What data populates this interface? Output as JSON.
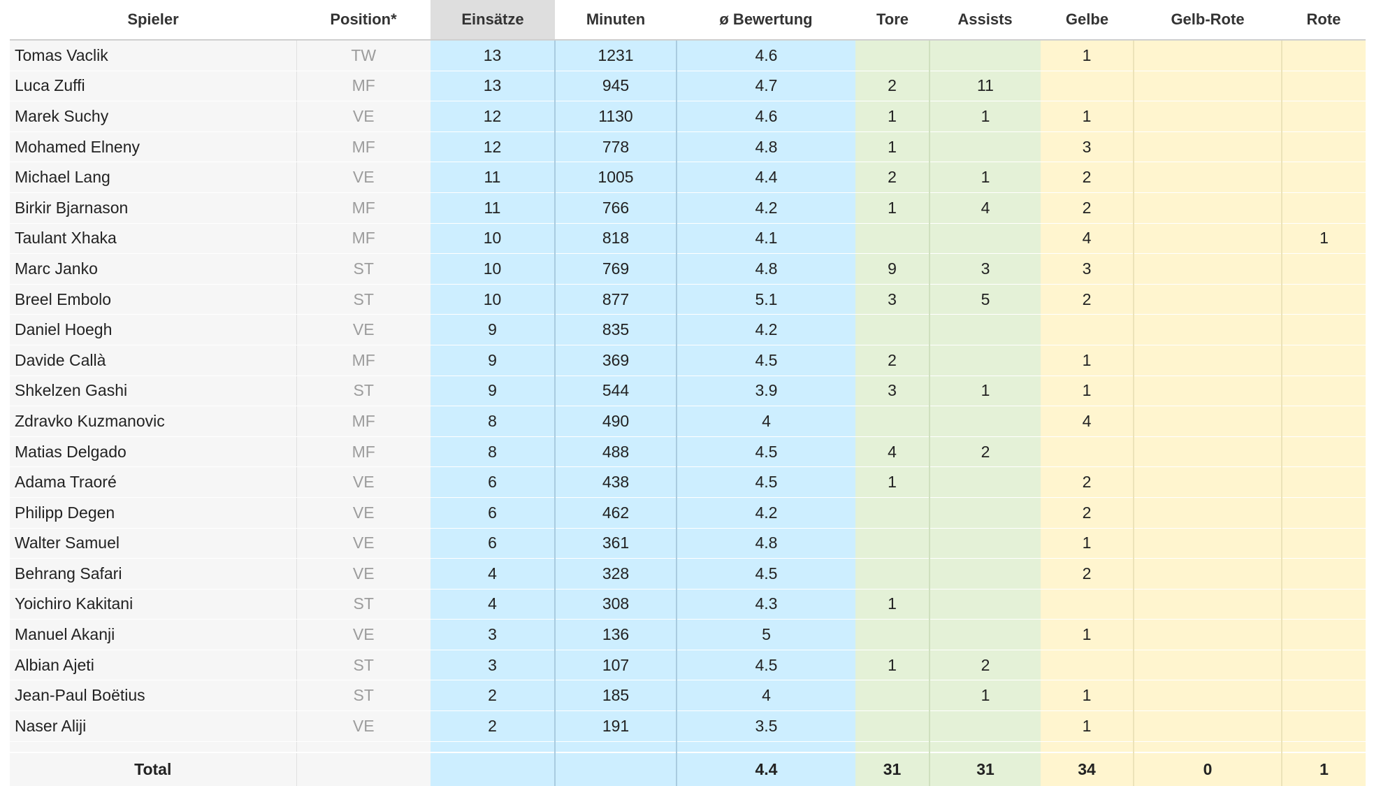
{
  "columns": [
    "Spieler",
    "Position*",
    "Einsätze",
    "Minuten",
    "ø Bewertung",
    "Tore",
    "Assists",
    "Gelbe",
    "Gelb-Rote",
    "Rote"
  ],
  "sorted_column": "Einsätze",
  "colors": {
    "blue_group": "#cdeeff",
    "green_group": "#e4f1d7",
    "yellow_group": "#fff5cf",
    "sorted_header": "#dedede",
    "position_text": "#9c9c9c"
  },
  "rows": [
    [
      "Tomas Vaclik",
      "TW",
      "13",
      "1231",
      "4.6",
      "",
      "",
      "1",
      "",
      ""
    ],
    [
      "Luca Zuffi",
      "MF",
      "13",
      "945",
      "4.7",
      "2",
      "11",
      "",
      "",
      ""
    ],
    [
      "Marek Suchy",
      "VE",
      "12",
      "1130",
      "4.6",
      "1",
      "1",
      "1",
      "",
      ""
    ],
    [
      "Mohamed Elneny",
      "MF",
      "12",
      "778",
      "4.8",
      "1",
      "",
      "3",
      "",
      ""
    ],
    [
      "Michael Lang",
      "VE",
      "11",
      "1005",
      "4.4",
      "2",
      "1",
      "2",
      "",
      ""
    ],
    [
      "Birkir Bjarnason",
      "MF",
      "11",
      "766",
      "4.2",
      "1",
      "4",
      "2",
      "",
      ""
    ],
    [
      "Taulant Xhaka",
      "MF",
      "10",
      "818",
      "4.1",
      "",
      "",
      "4",
      "",
      "1"
    ],
    [
      "Marc Janko",
      "ST",
      "10",
      "769",
      "4.8",
      "9",
      "3",
      "3",
      "",
      ""
    ],
    [
      "Breel Embolo",
      "ST",
      "10",
      "877",
      "5.1",
      "3",
      "5",
      "2",
      "",
      ""
    ],
    [
      "Daniel Hoegh",
      "VE",
      "9",
      "835",
      "4.2",
      "",
      "",
      "",
      "",
      ""
    ],
    [
      "Davide Callà",
      "MF",
      "9",
      "369",
      "4.5",
      "2",
      "",
      "1",
      "",
      ""
    ],
    [
      "Shkelzen Gashi",
      "ST",
      "9",
      "544",
      "3.9",
      "3",
      "1",
      "1",
      "",
      ""
    ],
    [
      "Zdravko Kuzmanovic",
      "MF",
      "8",
      "490",
      "4",
      "",
      "",
      "4",
      "",
      ""
    ],
    [
      "Matias Delgado",
      "MF",
      "8",
      "488",
      "4.5",
      "4",
      "2",
      "",
      "",
      ""
    ],
    [
      "Adama Traoré",
      "VE",
      "6",
      "438",
      "4.5",
      "1",
      "",
      "2",
      "",
      ""
    ],
    [
      "Philipp Degen",
      "VE",
      "6",
      "462",
      "4.2",
      "",
      "",
      "2",
      "",
      ""
    ],
    [
      "Walter Samuel",
      "VE",
      "6",
      "361",
      "4.8",
      "",
      "",
      "1",
      "",
      ""
    ],
    [
      "Behrang Safari",
      "VE",
      "4",
      "328",
      "4.5",
      "",
      "",
      "2",
      "",
      ""
    ],
    [
      "Yoichiro Kakitani",
      "ST",
      "4",
      "308",
      "4.3",
      "1",
      "",
      "",
      "",
      ""
    ],
    [
      "Manuel Akanji",
      "VE",
      "3",
      "136",
      "5",
      "",
      "",
      "1",
      "",
      ""
    ],
    [
      "Albian Ajeti",
      "ST",
      "3",
      "107",
      "4.5",
      "1",
      "2",
      "",
      "",
      ""
    ],
    [
      "Jean-Paul Boëtius",
      "ST",
      "2",
      "185",
      "4",
      "",
      "1",
      "1",
      "",
      ""
    ],
    [
      "Naser Aliji",
      "VE",
      "2",
      "191",
      "3.5",
      "",
      "",
      "1",
      "",
      ""
    ]
  ],
  "total": [
    "Total",
    "",
    "",
    "",
    "4.4",
    "31",
    "31",
    "34",
    "0",
    "1"
  ]
}
